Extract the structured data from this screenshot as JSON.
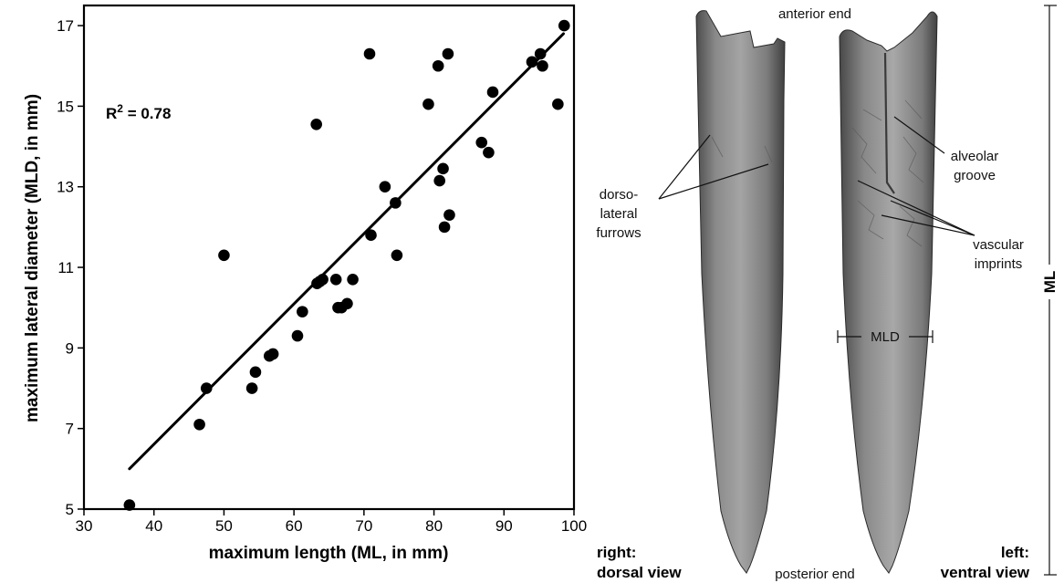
{
  "chart_data": {
    "type": "scatter",
    "xlabel": "maximum length (ML, in mm)",
    "ylabel": "maximum lateral diameter (MLD, in mm)",
    "xlim": [
      30,
      100
    ],
    "ylim": [
      5,
      17.5
    ],
    "xticks": [
      30,
      40,
      50,
      60,
      70,
      80,
      90,
      100
    ],
    "yticks": [
      5,
      7,
      9,
      11,
      13,
      15,
      17
    ],
    "annotation": {
      "prefix": "R",
      "sup": "2",
      "suffix": " = 0.78"
    },
    "trendline": {
      "x": [
        36.5,
        98.5
      ],
      "y": [
        6.0,
        16.8
      ]
    },
    "grid": false,
    "points": [
      [
        36.5,
        5.1
      ],
      [
        46.5,
        7.1
      ],
      [
        47.5,
        8.0
      ],
      [
        50,
        11.3
      ],
      [
        54,
        8.0
      ],
      [
        54.5,
        8.4
      ],
      [
        56.5,
        8.8
      ],
      [
        57,
        8.85
      ],
      [
        60.5,
        9.3
      ],
      [
        61.2,
        9.9
      ],
      [
        63.3,
        10.6
      ],
      [
        63.7,
        10.65
      ],
      [
        63.2,
        14.55
      ],
      [
        64.1,
        10.7
      ],
      [
        66,
        10.7
      ],
      [
        66.3,
        10.0
      ],
      [
        66.8,
        10.0
      ],
      [
        67.6,
        10.1
      ],
      [
        68.4,
        10.7
      ],
      [
        71,
        11.8
      ],
      [
        70.8,
        16.3
      ],
      [
        73,
        13.0
      ],
      [
        74.5,
        12.6
      ],
      [
        74.7,
        11.3
      ],
      [
        79.2,
        15.05
      ],
      [
        80.6,
        16.0
      ],
      [
        80.8,
        13.15
      ],
      [
        81.3,
        13.45
      ],
      [
        81.5,
        12.0
      ],
      [
        82,
        16.3
      ],
      [
        82.2,
        12.3
      ],
      [
        86.8,
        14.1
      ],
      [
        87.8,
        13.85
      ],
      [
        88.4,
        15.35
      ],
      [
        94,
        16.1
      ],
      [
        95.2,
        16.3
      ],
      [
        95.5,
        16.0
      ],
      [
        97.7,
        15.05
      ],
      [
        98.6,
        17.0
      ]
    ]
  },
  "photo": {
    "labels": {
      "anterior": "anterior end",
      "posterior": "posterior end",
      "dorso_1": "dorso-",
      "dorso_2": "lateral",
      "dorso_3": "furrows",
      "alveolar_1": "alveolar",
      "alveolar_2": "groove",
      "vascular_1": "vascular",
      "vascular_2": "imprints",
      "mld": "MLD",
      "ml": "ML",
      "right_1": "right:",
      "right_2": "dorsal view",
      "left_1": "left:",
      "left_2": "ventral view"
    }
  }
}
